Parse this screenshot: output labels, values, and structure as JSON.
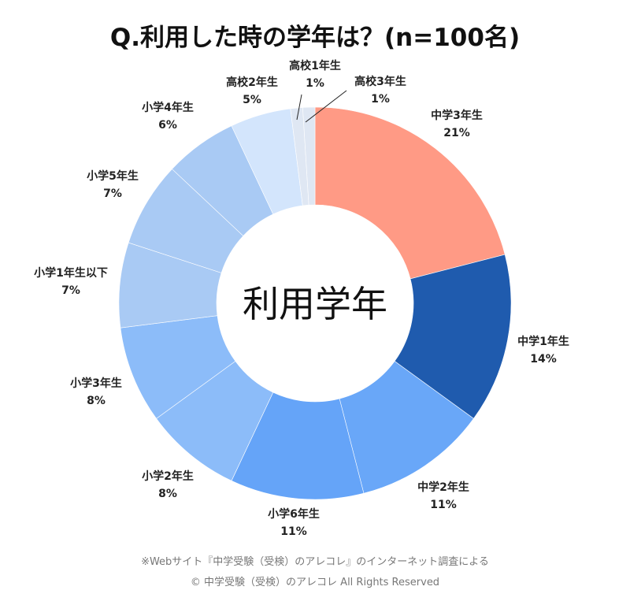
{
  "chart_data": {
    "type": "pie",
    "title": "Q.利用した時の学年は？(n=100名)",
    "center_label": "利用学年",
    "unit": "%",
    "slices": [
      {
        "label": "中学3年生",
        "value": 21,
        "color": "#FF9A85"
      },
      {
        "label": "中学1年生",
        "value": 14,
        "color": "#1F5BAE"
      },
      {
        "label": "中学2年生",
        "value": 11,
        "color": "#69A7F8"
      },
      {
        "label": "小学6年生",
        "value": 11,
        "color": "#65A4F8"
      },
      {
        "label": "小学2年生",
        "value": 8,
        "color": "#8CBCF9"
      },
      {
        "label": "小学3年生",
        "value": 8,
        "color": "#8CBCF9"
      },
      {
        "label": "小学1年生以下",
        "value": 7,
        "color": "#A9CAF4"
      },
      {
        "label": "小学5年生",
        "value": 7,
        "color": "#A9CAF4"
      },
      {
        "label": "小学4年生",
        "value": 6,
        "color": "#A9CAF4"
      },
      {
        "label": "高校2年生",
        "value": 5,
        "color": "#D3E5FC"
      },
      {
        "label": "高校1年生",
        "value": 1,
        "color": "#DFE7F3"
      },
      {
        "label": "高校3年生",
        "value": 1,
        "color": "#DFE7F3"
      }
    ]
  },
  "footer": {
    "source": "※Webサイト『中学受験（受検）のアレコレ』のインターネット調査による",
    "copyright": "© 中学受験（受検）のアレコレ All Rights Reserved"
  }
}
